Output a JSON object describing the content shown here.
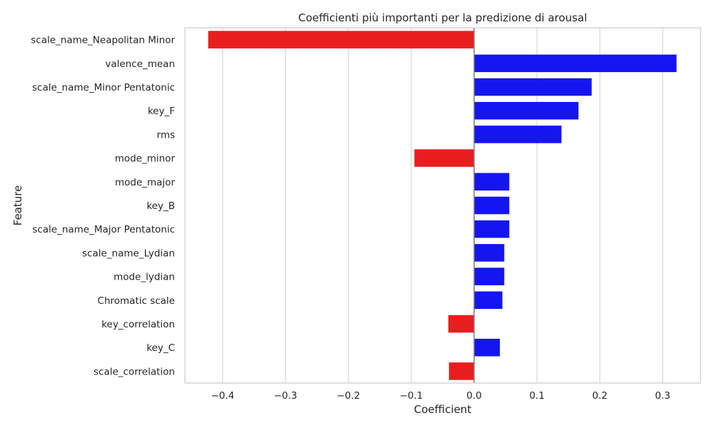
{
  "chart_data": {
    "type": "bar",
    "orientation": "horizontal",
    "title": "Coefficienti più importanti per la predizione di arousal",
    "xlabel": "Coefficient",
    "ylabel": "Feature",
    "xlim": [
      -0.46,
      0.36
    ],
    "xticks": [
      -0.4,
      -0.3,
      -0.2,
      -0.1,
      0.0,
      0.1,
      0.2,
      0.3
    ],
    "xtick_labels": [
      "−0.4",
      "−0.3",
      "−0.2",
      "−0.1",
      "0.0",
      "0.1",
      "0.2",
      "0.3"
    ],
    "grid": "vertical",
    "colors": {
      "positive": "#1515f0",
      "negative": "#e81e1e",
      "grid": "#d6d6d6",
      "frame": "#cccccc"
    },
    "categories": [
      "scale_name_Neapolitan Minor",
      "valence_mean",
      "scale_name_Minor Pentatonic",
      "key_F",
      "rms",
      "mode_minor",
      "mode_major",
      "key_B",
      "scale_name_Major Pentatonic",
      "scale_name_Lydian",
      "mode_lydian",
      "Chromatic scale",
      "key_correlation",
      "key_C",
      "scale_correlation"
    ],
    "values": [
      -0.423,
      0.322,
      0.187,
      0.166,
      0.139,
      -0.095,
      0.056,
      0.056,
      0.056,
      0.048,
      0.048,
      0.045,
      -0.041,
      0.041,
      -0.04
    ]
  }
}
